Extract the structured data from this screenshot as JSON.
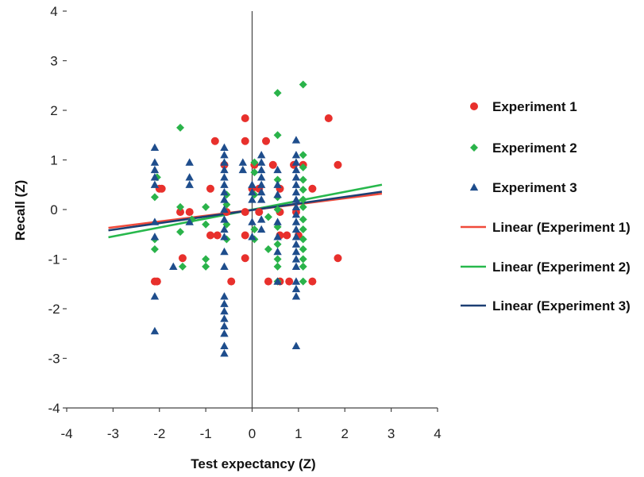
{
  "chart_data": {
    "type": "scatter",
    "title": "",
    "xlabel": "Test expectancy (Z)",
    "ylabel": "Recall (Z)",
    "xlim": [
      -4,
      4
    ],
    "ylim": [
      -4,
      4
    ],
    "xticks": [
      -4,
      -3,
      -2,
      -1,
      0,
      1,
      2,
      3,
      4
    ],
    "yticks": [
      -4,
      -3,
      -2,
      -1,
      0,
      1,
      2,
      3,
      4
    ],
    "grid": false,
    "legend": "right",
    "series": [
      {
        "name": "Experiment 1",
        "marker": "circle",
        "color": "#e8302c",
        "points": [
          [
            -2.1,
            -1.45
          ],
          [
            -2.05,
            -1.45
          ],
          [
            -2.0,
            0.42
          ],
          [
            -1.95,
            0.42
          ],
          [
            -1.55,
            -0.05
          ],
          [
            -1.5,
            -0.98
          ],
          [
            -1.35,
            -0.05
          ],
          [
            -0.9,
            0.42
          ],
          [
            -0.9,
            -0.52
          ],
          [
            -0.8,
            1.38
          ],
          [
            -0.75,
            -0.52
          ],
          [
            -0.6,
            0.9
          ],
          [
            -0.55,
            -0.05
          ],
          [
            -0.45,
            -1.45
          ],
          [
            -0.15,
            1.84
          ],
          [
            -0.15,
            1.38
          ],
          [
            -0.15,
            -0.05
          ],
          [
            -0.15,
            -0.52
          ],
          [
            -0.15,
            -0.98
          ],
          [
            0.0,
            0.42
          ],
          [
            0.05,
            0.9
          ],
          [
            0.15,
            0.42
          ],
          [
            0.15,
            -0.05
          ],
          [
            0.3,
            1.38
          ],
          [
            0.35,
            -1.45
          ],
          [
            0.45,
            0.9
          ],
          [
            0.6,
            0.42
          ],
          [
            0.6,
            -0.05
          ],
          [
            0.6,
            -0.52
          ],
          [
            0.6,
            -1.45
          ],
          [
            0.75,
            -0.52
          ],
          [
            0.8,
            -1.45
          ],
          [
            0.9,
            0.9
          ],
          [
            0.95,
            -0.05
          ],
          [
            1.0,
            -0.52
          ],
          [
            1.1,
            0.9
          ],
          [
            1.3,
            0.42
          ],
          [
            1.3,
            -1.45
          ],
          [
            1.65,
            1.84
          ],
          [
            1.85,
            0.9
          ],
          [
            1.85,
            -0.98
          ]
        ],
        "trend": {
          "name": "Linear (Experiment 1)",
          "color": "#f04a3a",
          "x": [
            -3.1,
            2.8
          ],
          "y": [
            -0.37,
            0.32
          ]
        }
      },
      {
        "name": "Experiment 2",
        "marker": "diamond",
        "color": "#2ab34a",
        "points": [
          [
            -2.1,
            0.25
          ],
          [
            -2.1,
            -0.6
          ],
          [
            -2.1,
            -0.8
          ],
          [
            -2.05,
            0.65
          ],
          [
            -1.55,
            1.65
          ],
          [
            -1.55,
            0.05
          ],
          [
            -1.55,
            -0.45
          ],
          [
            -1.5,
            -1.15
          ],
          [
            -1.3,
            -0.2
          ],
          [
            -1.0,
            0.05
          ],
          [
            -1.0,
            -0.3
          ],
          [
            -1.0,
            -1.0
          ],
          [
            -1.0,
            -1.15
          ],
          [
            -0.55,
            0.3
          ],
          [
            -0.55,
            0.1
          ],
          [
            -0.55,
            -0.3
          ],
          [
            -0.55,
            -0.6
          ],
          [
            0.05,
            0.95
          ],
          [
            0.05,
            0.75
          ],
          [
            0.05,
            0.3
          ],
          [
            0.05,
            -0.4
          ],
          [
            0.05,
            -0.6
          ],
          [
            0.35,
            -0.15
          ],
          [
            0.35,
            -0.8
          ],
          [
            0.55,
            2.35
          ],
          [
            0.55,
            1.5
          ],
          [
            0.55,
            0.6
          ],
          [
            0.55,
            0.25
          ],
          [
            0.55,
            0.0
          ],
          [
            0.55,
            -0.35
          ],
          [
            0.55,
            -0.7
          ],
          [
            0.55,
            -1.0
          ],
          [
            0.55,
            -1.15
          ],
          [
            0.55,
            -1.45
          ],
          [
            1.1,
            2.52
          ],
          [
            1.1,
            1.1
          ],
          [
            1.1,
            0.85
          ],
          [
            1.1,
            0.6
          ],
          [
            1.1,
            0.4
          ],
          [
            1.1,
            0.2
          ],
          [
            1.1,
            0.05
          ],
          [
            1.1,
            -0.2
          ],
          [
            1.1,
            -0.4
          ],
          [
            1.1,
            -0.6
          ],
          [
            1.1,
            -0.8
          ],
          [
            1.1,
            -1.0
          ],
          [
            1.1,
            -1.15
          ],
          [
            1.1,
            -1.45
          ]
        ],
        "trend": {
          "name": "Linear (Experiment 2)",
          "color": "#27b84c",
          "x": [
            -3.1,
            2.8
          ],
          "y": [
            -0.56,
            0.5
          ]
        }
      },
      {
        "name": "Experiment 3",
        "marker": "triangle",
        "color": "#1e4d8c",
        "points": [
          [
            -2.1,
            1.25
          ],
          [
            -2.1,
            0.95
          ],
          [
            -2.1,
            0.8
          ],
          [
            -2.1,
            0.65
          ],
          [
            -2.1,
            0.5
          ],
          [
            -2.1,
            -0.25
          ],
          [
            -2.1,
            -0.55
          ],
          [
            -2.1,
            -1.75
          ],
          [
            -2.1,
            -2.45
          ],
          [
            -1.7,
            -1.15
          ],
          [
            -1.35,
            0.95
          ],
          [
            -1.35,
            0.65
          ],
          [
            -1.35,
            0.5
          ],
          [
            -1.35,
            -0.25
          ],
          [
            -0.6,
            1.25
          ],
          [
            -0.6,
            1.1
          ],
          [
            -0.6,
            0.95
          ],
          [
            -0.6,
            0.8
          ],
          [
            -0.6,
            0.65
          ],
          [
            -0.6,
            0.5
          ],
          [
            -0.6,
            0.35
          ],
          [
            -0.6,
            0.2
          ],
          [
            -0.6,
            0.0
          ],
          [
            -0.6,
            -0.2
          ],
          [
            -0.6,
            -0.4
          ],
          [
            -0.6,
            -0.55
          ],
          [
            -0.6,
            -0.85
          ],
          [
            -0.6,
            -1.15
          ],
          [
            -0.6,
            -1.75
          ],
          [
            -0.6,
            -1.9
          ],
          [
            -0.6,
            -2.05
          ],
          [
            -0.6,
            -2.2
          ],
          [
            -0.6,
            -2.35
          ],
          [
            -0.6,
            -2.5
          ],
          [
            -0.6,
            -2.75
          ],
          [
            -0.6,
            -2.9
          ],
          [
            -0.2,
            0.95
          ],
          [
            -0.2,
            0.8
          ],
          [
            0.0,
            0.5
          ],
          [
            0.0,
            0.35
          ],
          [
            0.0,
            0.2
          ],
          [
            0.0,
            -0.25
          ],
          [
            0.0,
            -0.55
          ],
          [
            0.2,
            1.1
          ],
          [
            0.2,
            0.95
          ],
          [
            0.2,
            0.8
          ],
          [
            0.2,
            0.65
          ],
          [
            0.2,
            0.5
          ],
          [
            0.2,
            0.35
          ],
          [
            0.2,
            0.2
          ],
          [
            0.2,
            -0.2
          ],
          [
            0.2,
            -0.4
          ],
          [
            0.55,
            0.8
          ],
          [
            0.55,
            0.5
          ],
          [
            0.55,
            0.3
          ],
          [
            0.55,
            -0.25
          ],
          [
            0.55,
            -0.55
          ],
          [
            0.55,
            -0.85
          ],
          [
            0.55,
            -1.45
          ],
          [
            0.95,
            1.4
          ],
          [
            0.95,
            1.1
          ],
          [
            0.95,
            0.95
          ],
          [
            0.95,
            0.8
          ],
          [
            0.95,
            0.65
          ],
          [
            0.95,
            0.5
          ],
          [
            0.95,
            0.35
          ],
          [
            0.95,
            0.2
          ],
          [
            0.95,
            0.05
          ],
          [
            0.95,
            -0.1
          ],
          [
            0.95,
            -0.25
          ],
          [
            0.95,
            -0.4
          ],
          [
            0.95,
            -0.55
          ],
          [
            0.95,
            -0.7
          ],
          [
            0.95,
            -0.85
          ],
          [
            0.95,
            -1.0
          ],
          [
            0.95,
            -1.15
          ],
          [
            0.95,
            -1.45
          ],
          [
            0.95,
            -1.6
          ],
          [
            0.95,
            -1.75
          ],
          [
            0.95,
            -2.75
          ]
        ],
        "trend": {
          "name": "Linear (Experiment 3)",
          "color": "#1c3f73",
          "x": [
            -3.1,
            2.8
          ],
          "y": [
            -0.42,
            0.36
          ]
        }
      }
    ]
  }
}
